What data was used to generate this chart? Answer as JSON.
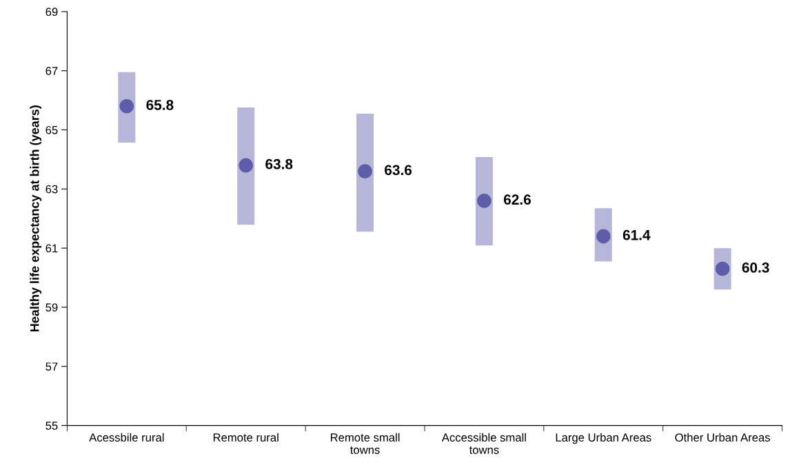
{
  "chart_data": {
    "type": "scatter",
    "ylabel": "Healthy life expectancy at birth (years)",
    "categories": [
      "Acessbile rural",
      "Remote rural",
      "Remote small towns",
      "Accessible small towns",
      "Large Urban Areas",
      "Other Urban Areas"
    ],
    "values": [
      65.8,
      63.8,
      63.6,
      62.6,
      61.4,
      60.3
    ],
    "errors": [
      [
        64.57,
        66.95
      ],
      [
        61.79,
        65.76
      ],
      [
        61.56,
        65.55
      ],
      [
        61.09,
        64.08
      ],
      [
        60.55,
        62.35
      ],
      [
        59.6,
        61.0
      ]
    ],
    "color": "#5d5daa",
    "marker": "circle",
    "data_labels": true,
    "ylim": [
      55,
      69
    ],
    "yticks": [
      55,
      57,
      59,
      61,
      63,
      65,
      67,
      69
    ],
    "grid": false,
    "legend": false
  }
}
